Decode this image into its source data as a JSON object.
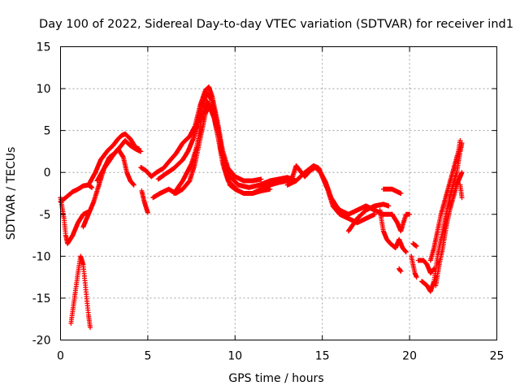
{
  "chart_data": {
    "type": "scatter",
    "title": "Day 100 of 2022, Sidereal Day-to-day VTEC variation (SDTVAR) for receiver ind1",
    "xlabel": "GPS time / hours",
    "ylabel": "SDTVAR / TECUs",
    "xlim": [
      0,
      25
    ],
    "ylim": [
      -20,
      15
    ],
    "x_ticks": [
      0,
      5,
      10,
      15,
      20,
      25
    ],
    "y_ticks": [
      -20,
      -15,
      -10,
      -5,
      0,
      5,
      10,
      15
    ],
    "grid": true,
    "marker": "+",
    "series": [
      {
        "name": "SDTVAR",
        "color": "#ff0000",
        "segments": [
          [
            [
              0.0,
              -3.5
            ],
            [
              0.3,
              -3.0
            ],
            [
              0.7,
              -2.3
            ],
            [
              1.0,
              -2.0
            ],
            [
              1.3,
              -1.6
            ],
            [
              1.6,
              -1.5
            ],
            [
              1.8,
              -1.8
            ]
          ],
          [
            [
              0.0,
              -3.0
            ],
            [
              0.2,
              -5.5
            ],
            [
              0.3,
              -7.5
            ],
            [
              0.4,
              -8.5
            ],
            [
              0.7,
              -7.5
            ],
            [
              1.0,
              -6.0
            ],
            [
              1.3,
              -5.0
            ],
            [
              1.6,
              -4.7
            ]
          ],
          [
            [
              0.6,
              -18.0
            ],
            [
              0.8,
              -15.0
            ],
            [
              1.0,
              -12.0
            ],
            [
              1.15,
              -10.0
            ],
            [
              1.3,
              -11.0
            ],
            [
              1.45,
              -14.0
            ],
            [
              1.6,
              -17.0
            ],
            [
              1.7,
              -18.5
            ]
          ],
          [
            [
              1.3,
              -6.5
            ],
            [
              1.6,
              -5.0
            ],
            [
              1.9,
              -3.5
            ],
            [
              2.2,
              -1.5
            ],
            [
              2.5,
              0.5
            ],
            [
              2.8,
              1.8
            ],
            [
              3.1,
              2.3
            ],
            [
              3.4,
              3.0
            ],
            [
              3.7,
              3.8
            ],
            [
              4.0,
              3.2
            ],
            [
              4.3,
              2.8
            ],
            [
              4.6,
              2.5
            ]
          ],
          [
            [
              1.6,
              -1.5
            ],
            [
              2.0,
              0.0
            ],
            [
              2.3,
              1.5
            ],
            [
              2.7,
              2.6
            ],
            [
              3.0,
              3.2
            ],
            [
              3.3,
              4.0
            ],
            [
              3.5,
              4.4
            ],
            [
              3.7,
              4.6
            ],
            [
              4.0,
              4.0
            ],
            [
              4.3,
              3.0
            ],
            [
              4.5,
              2.8
            ]
          ],
          [
            [
              2.1,
              -1.0
            ],
            [
              2.5,
              0.5
            ],
            [
              3.0,
              2.0
            ],
            [
              3.3,
              2.8
            ],
            [
              3.6,
              1.8
            ],
            [
              3.8,
              0.0
            ],
            [
              4.0,
              -1.0
            ],
            [
              4.2,
              -1.5
            ]
          ],
          [
            [
              4.65,
              -2.2
            ],
            [
              4.8,
              -3.5
            ],
            [
              5.0,
              -4.8
            ]
          ],
          [
            [
              4.6,
              0.6
            ],
            [
              4.9,
              0.2
            ],
            [
              5.2,
              -0.5
            ],
            [
              5.5,
              0.0
            ],
            [
              5.9,
              0.5
            ],
            [
              6.3,
              1.5
            ],
            [
              6.6,
              2.2
            ],
            [
              7.0,
              3.5
            ],
            [
              7.4,
              4.3
            ],
            [
              7.7,
              5.5
            ],
            [
              8.0,
              8.0
            ],
            [
              8.3,
              9.8
            ],
            [
              8.5,
              10.2
            ],
            [
              8.7,
              9.0
            ],
            [
              9.0,
              6.0
            ],
            [
              9.3,
              2.5
            ],
            [
              9.6,
              0.5
            ],
            [
              10.0,
              -0.5
            ],
            [
              10.5,
              -1.0
            ],
            [
              11.0,
              -1.0
            ],
            [
              11.5,
              -0.8
            ]
          ],
          [
            [
              5.3,
              -3.0
            ],
            [
              5.7,
              -2.5
            ],
            [
              6.2,
              -2.0
            ],
            [
              6.6,
              -2.5
            ],
            [
              7.0,
              -2.0
            ],
            [
              7.4,
              -1.0
            ],
            [
              7.7,
              1.0
            ],
            [
              8.0,
              4.0
            ],
            [
              8.3,
              7.0
            ],
            [
              8.5,
              8.0
            ],
            [
              8.8,
              6.5
            ],
            [
              9.1,
              3.5
            ],
            [
              9.4,
              0.5
            ],
            [
              9.7,
              -1.5
            ],
            [
              10.0,
              -2.0
            ],
            [
              10.5,
              -2.5
            ],
            [
              11.0,
              -2.5
            ],
            [
              11.5,
              -2.2
            ],
            [
              12.0,
              -2.0
            ]
          ],
          [
            [
              5.6,
              -0.8
            ],
            [
              6.0,
              -0.2
            ],
            [
              6.5,
              0.5
            ],
            [
              7.0,
              1.5
            ],
            [
              7.3,
              2.5
            ],
            [
              7.6,
              4.0
            ],
            [
              7.9,
              6.0
            ],
            [
              8.2,
              8.5
            ],
            [
              8.4,
              9.5
            ],
            [
              8.7,
              8.5
            ],
            [
              9.0,
              5.5
            ],
            [
              9.3,
              2.0
            ],
            [
              9.7,
              -0.5
            ],
            [
              10.2,
              -1.5
            ],
            [
              10.8,
              -1.8
            ],
            [
              11.4,
              -1.5
            ],
            [
              12.0,
              -1.0
            ],
            [
              12.5,
              -0.8
            ],
            [
              13.0,
              -0.6
            ],
            [
              13.5,
              -1.0
            ]
          ],
          [
            [
              6.5,
              -2.5
            ],
            [
              7.0,
              -1.0
            ],
            [
              7.5,
              1.0
            ],
            [
              7.8,
              3.0
            ],
            [
              8.1,
              6.5
            ],
            [
              8.4,
              8.5
            ],
            [
              8.7,
              7.5
            ],
            [
              9.0,
              4.5
            ],
            [
              9.3,
              1.0
            ],
            [
              9.6,
              -1.0
            ],
            [
              10.1,
              -2.0
            ]
          ],
          [
            [
              11.0,
              -2.5
            ],
            [
              11.5,
              -2.0
            ],
            [
              12.0,
              -1.5
            ],
            [
              12.5,
              -1.2
            ],
            [
              13.0,
              -1.0
            ],
            [
              13.3,
              -0.5
            ],
            [
              13.5,
              0.8
            ],
            [
              13.8,
              0.0
            ],
            [
              14.0,
              -0.5
            ],
            [
              14.3,
              0.2
            ],
            [
              14.6,
              0.6
            ],
            [
              14.9,
              0.0
            ],
            [
              15.2,
              -1.2
            ],
            [
              15.5,
              -3.0
            ],
            [
              15.8,
              -4.0
            ],
            [
              16.0,
              -4.5
            ],
            [
              16.5,
              -5.0
            ],
            [
              17.0,
              -4.5
            ],
            [
              17.5,
              -4.0
            ],
            [
              18.0,
              -4.5
            ],
            [
              18.5,
              -5.0
            ],
            [
              19.0,
              -5.0
            ]
          ],
          [
            [
              13.0,
              -1.5
            ],
            [
              13.5,
              -1.0
            ],
            [
              14.0,
              0.0
            ],
            [
              14.5,
              0.8
            ],
            [
              14.8,
              0.5
            ],
            [
              15.0,
              -0.5
            ],
            [
              15.3,
              -2.0
            ],
            [
              15.6,
              -4.0
            ],
            [
              16.0,
              -5.0
            ],
            [
              16.5,
              -5.5
            ],
            [
              17.0,
              -6.0
            ],
            [
              17.5,
              -5.5
            ],
            [
              18.0,
              -5.0
            ]
          ],
          [
            [
              16.5,
              -7.0
            ],
            [
              17.0,
              -5.5
            ],
            [
              17.5,
              -4.5
            ],
            [
              18.0,
              -4.0
            ],
            [
              18.5,
              -3.8
            ],
            [
              18.8,
              -4.0
            ]
          ],
          [
            [
              18.3,
              -4.5
            ],
            [
              18.5,
              -7.0
            ],
            [
              18.7,
              -8.0
            ],
            [
              18.9,
              -8.5
            ],
            [
              19.2,
              -9.0
            ],
            [
              19.4,
              -8.0
            ],
            [
              19.6,
              -9.0
            ],
            [
              19.8,
              -9.5
            ]
          ],
          [
            [
              18.5,
              -2.0
            ],
            [
              19.0,
              -2.0
            ],
            [
              19.5,
              -2.5
            ]
          ],
          [
            [
              19.0,
              -5.0
            ],
            [
              19.3,
              -6.0
            ],
            [
              19.5,
              -7.0
            ],
            [
              19.8,
              -5.0
            ],
            [
              20.0,
              -5.0
            ]
          ],
          [
            [
              19.4,
              -11.5
            ],
            [
              19.5,
              -11.8
            ]
          ],
          [
            [
              20.1,
              -10.0
            ],
            [
              20.3,
              -12.0
            ],
            [
              20.4,
              -12.5
            ]
          ],
          [
            [
              20.2,
              -8.5
            ],
            [
              20.4,
              -8.8
            ]
          ],
          [
            [
              20.5,
              -10.5
            ],
            [
              20.8,
              -10.5
            ],
            [
              21.0,
              -11.0
            ],
            [
              21.2,
              -12.0
            ],
            [
              21.4,
              -11.5
            ]
          ],
          [
            [
              20.7,
              -13.0
            ],
            [
              21.0,
              -13.5
            ],
            [
              21.2,
              -14.2
            ],
            [
              21.4,
              -13.0
            ],
            [
              21.6,
              -10.0
            ],
            [
              21.8,
              -8.0
            ],
            [
              22.0,
              -6.0
            ],
            [
              22.3,
              -3.0
            ],
            [
              22.5,
              -1.5
            ],
            [
              22.7,
              0.0
            ],
            [
              22.9,
              2.5
            ],
            [
              23.0,
              3.5
            ]
          ],
          [
            [
              21.2,
              -10.5
            ],
            [
              21.4,
              -9.0
            ],
            [
              21.6,
              -7.0
            ],
            [
              21.8,
              -5.0
            ],
            [
              22.0,
              -3.5
            ],
            [
              22.2,
              -2.0
            ],
            [
              22.4,
              -0.5
            ],
            [
              22.6,
              1.0
            ],
            [
              22.8,
              2.5
            ],
            [
              22.9,
              3.8
            ]
          ],
          [
            [
              21.5,
              -13.5
            ],
            [
              21.7,
              -11.0
            ],
            [
              21.9,
              -9.0
            ],
            [
              22.1,
              -6.5
            ],
            [
              22.3,
              -4.5
            ],
            [
              22.5,
              -3.0
            ],
            [
              22.7,
              -1.5
            ],
            [
              22.9,
              -0.5
            ],
            [
              23.0,
              0.0
            ]
          ],
          [
            [
              22.9,
              -1.5
            ],
            [
              23.0,
              -3.0
            ]
          ]
        ]
      }
    ]
  }
}
